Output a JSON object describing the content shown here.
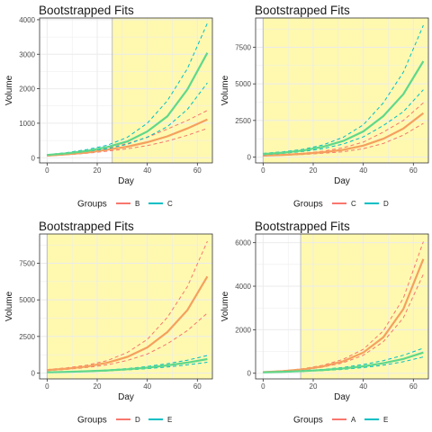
{
  "colors": {
    "series_a": "#f8766d",
    "series_b": "#00bfc4",
    "fit_a": "#f5a05e",
    "fit_b": "#5fd88a",
    "highlight": "#fff9b0",
    "grid": "#ebebeb",
    "frame": "#333333"
  },
  "chart_data": [
    {
      "type": "line",
      "title": "Bootstrapped Fits",
      "xlabel": "Day",
      "ylabel": "Volume",
      "xlim": [
        -3,
        66
      ],
      "ylim": [
        -150,
        4050
      ],
      "xticks": [
        0,
        20,
        40,
        60
      ],
      "yticks": [
        0,
        1000,
        2000,
        3000,
        4000
      ],
      "highlight_start": 26,
      "legend_title": "Groups",
      "legend_position": "bottom",
      "series": [
        {
          "name": "B",
          "color": "#f8766d",
          "x": [
            0,
            8,
            16,
            24,
            32,
            40,
            48,
            56,
            64
          ],
          "fit": [
            60,
            100,
            150,
            230,
            320,
            450,
            620,
            850,
            1110
          ],
          "upper": [
            70,
            120,
            180,
            270,
            410,
            590,
            830,
            1080,
            1370
          ],
          "lower": [
            50,
            85,
            130,
            190,
            260,
            350,
            480,
            650,
            850
          ]
        },
        {
          "name": "C",
          "color": "#00bfc4",
          "x": [
            0,
            8,
            16,
            24,
            32,
            40,
            48,
            56,
            64
          ],
          "fit": [
            80,
            130,
            200,
            310,
            470,
            760,
            1200,
            1980,
            3040
          ],
          "upper": [
            90,
            150,
            240,
            360,
            590,
            1000,
            1650,
            2580,
            3900
          ],
          "lower": [
            70,
            115,
            180,
            260,
            390,
            600,
            900,
            1400,
            2170
          ]
        }
      ]
    },
    {
      "type": "line",
      "title": "Bootstrapped Fits",
      "xlabel": "Day",
      "ylabel": "Volume",
      "xlim": [
        -3,
        66
      ],
      "ylim": [
        -400,
        9500
      ],
      "xticks": [
        0,
        20,
        40,
        60
      ],
      "yticks": [
        0,
        2500,
        5000,
        7500
      ],
      "highlight_start": 0,
      "legend_title": "Groups",
      "legend_position": "bottom",
      "series": [
        {
          "name": "C",
          "color": "#f8766d",
          "x": [
            0,
            8,
            16,
            24,
            32,
            40,
            48,
            56,
            64
          ],
          "fit": [
            100,
            150,
            220,
            330,
            490,
            780,
            1250,
            1950,
            3000
          ],
          "upper": [
            120,
            180,
            260,
            400,
            640,
            1020,
            1700,
            2500,
            3700
          ],
          "lower": [
            80,
            120,
            180,
            260,
            360,
            570,
            930,
            1500,
            2300
          ]
        },
        {
          "name": "D",
          "color": "#00bfc4",
          "x": [
            0,
            8,
            16,
            24,
            32,
            40,
            48,
            56,
            64
          ],
          "fit": [
            200,
            300,
            450,
            700,
            1100,
            1750,
            2800,
            4300,
            6550
          ],
          "upper": [
            250,
            360,
            530,
            830,
            1350,
            2200,
            3700,
            5800,
            9000
          ],
          "lower": [
            160,
            250,
            380,
            580,
            890,
            1380,
            2150,
            3100,
            4600
          ]
        }
      ]
    },
    {
      "type": "line",
      "title": "Bootstrapped Fits",
      "xlabel": "Day",
      "ylabel": "Volume",
      "xlim": [
        -3,
        66
      ],
      "ylim": [
        -400,
        9500
      ],
      "xticks": [
        0,
        20,
        40,
        60
      ],
      "yticks": [
        0,
        2500,
        5000,
        7500
      ],
      "highlight_start": 0,
      "legend_title": "Groups",
      "legend_position": "bottom",
      "series": [
        {
          "name": "D",
          "color": "#f8766d",
          "x": [
            0,
            8,
            16,
            24,
            32,
            40,
            48,
            56,
            64
          ],
          "fit": [
            200,
            300,
            450,
            700,
            1100,
            1750,
            2800,
            4300,
            6600
          ],
          "upper": [
            240,
            360,
            540,
            850,
            1400,
            2300,
            3800,
            5900,
            9000
          ],
          "lower": [
            160,
            250,
            380,
            560,
            860,
            1300,
            2000,
            2900,
            4100
          ]
        },
        {
          "name": "E",
          "color": "#00bfc4",
          "x": [
            0,
            8,
            16,
            24,
            32,
            40,
            48,
            56,
            64
          ],
          "fit": [
            50,
            80,
            120,
            180,
            260,
            370,
            520,
            710,
            950
          ],
          "upper": [
            60,
            95,
            140,
            210,
            310,
            450,
            640,
            880,
            1200
          ],
          "lower": [
            40,
            65,
            100,
            150,
            215,
            300,
            410,
            560,
            740
          ]
        }
      ]
    },
    {
      "type": "line",
      "title": "Bootstrapped Fits",
      "xlabel": "Day",
      "ylabel": "Volume",
      "xlim": [
        -3,
        66
      ],
      "ylim": [
        -260,
        6400
      ],
      "xticks": [
        0,
        20,
        40,
        60
      ],
      "yticks": [
        0,
        2000,
        4000,
        6000
      ],
      "highlight_start": 15,
      "legend_title": "Groups",
      "legend_position": "bottom",
      "series": [
        {
          "name": "A",
          "color": "#f8766d",
          "x": [
            0,
            8,
            16,
            24,
            32,
            40,
            48,
            56,
            64
          ],
          "fit": [
            50,
            100,
            180,
            320,
            550,
            950,
            1650,
            2950,
            5250
          ],
          "upper": [
            60,
            115,
            210,
            370,
            640,
            1100,
            1950,
            3450,
            6050
          ],
          "lower": [
            40,
            85,
            155,
            280,
            480,
            830,
            1450,
            2550,
            4550
          ]
        },
        {
          "name": "E",
          "color": "#00bfc4",
          "x": [
            0,
            8,
            16,
            24,
            32,
            40,
            48,
            56,
            64
          ],
          "fit": [
            40,
            65,
            100,
            150,
            220,
            320,
            460,
            660,
            950
          ],
          "upper": [
            50,
            80,
            120,
            180,
            270,
            400,
            580,
            830,
            1150
          ],
          "lower": [
            30,
            55,
            85,
            125,
            180,
            260,
            370,
            530,
            750
          ]
        }
      ]
    }
  ]
}
